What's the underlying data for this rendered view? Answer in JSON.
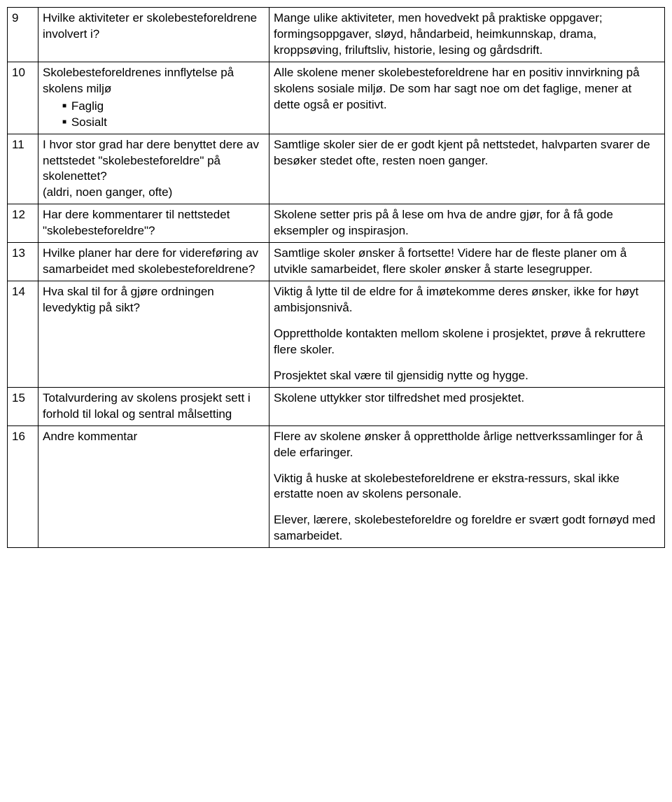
{
  "rows": [
    {
      "num": "9",
      "question": "Hvilke aktiviteter er skolebesteforeldrene involvert i?",
      "answer": "Mange ulike aktiviteter, men hovedvekt på praktiske oppgaver; formingsoppgaver, sløyd, håndarbeid, heimkunnskap, drama, kroppsøving, friluftsliv, historie, lesing og gårdsdrift."
    },
    {
      "num": "10",
      "question_pre": "Skolebesteforeldrenes innflytelse på skolens miljø",
      "bullets": [
        "Faglig",
        "Sosialt"
      ],
      "answer": "Alle skolene mener skolebesteforeldrene har en positiv innvirkning på skolens sosiale miljø. De som har sagt noe om det faglige, mener at dette også er positivt."
    },
    {
      "num": "11",
      "question": "I hvor stor grad har dere benyttet dere av nettstedet \"skolebesteforeldre\" på skolenettet?\n(aldri, noen ganger, ofte)",
      "answer": "Samtlige skoler sier de er godt kjent på nettstedet, halvparten svarer de besøker stedet ofte, resten noen ganger."
    },
    {
      "num": "12",
      "question": "Har dere kommentarer til nettstedet \"skolebesteforeldre\"?",
      "answer": "Skolene setter pris på å lese om hva de andre gjør, for å få gode eksempler og inspirasjon."
    },
    {
      "num": "13",
      "question": "Hvilke planer har dere for videreføring av samarbeidet med skolebesteforeldrene?",
      "answer": "Samtlige skoler ønsker å fortsette! Videre har de fleste planer om å utvikle samarbeidet, flere skoler ønsker å starte lesegrupper."
    },
    {
      "num": "14",
      "question": "Hva skal til for å gjøre ordningen levedyktig på sikt?",
      "answer_paragraphs": [
        "Viktig å lytte til de eldre for å imøtekomme deres ønsker, ikke for høyt ambisjonsnivå.",
        "Opprettholde kontakten mellom skolene i prosjektet, prøve å rekruttere flere skoler.",
        "Prosjektet skal være til gjensidig nytte og hygge."
      ]
    },
    {
      "num": "15",
      "question": "Totalvurdering av skolens prosjekt sett i forhold til lokal og sentral målsetting",
      "answer": "Skolene uttykker stor tilfredshet med prosjektet."
    },
    {
      "num": "16",
      "question": "Andre kommentar",
      "answer_paragraphs": [
        "Flere av skolene ønsker å opprettholde årlige nettverkssamlinger for å dele erfaringer.",
        "Viktig å huske at skolebesteforeldrene er ekstra-ressurs, skal ikke erstatte noen av skolens personale.",
        "Elever, lærere, skolebesteforeldre og foreldre er svært godt fornøyd med samarbeidet."
      ]
    }
  ]
}
